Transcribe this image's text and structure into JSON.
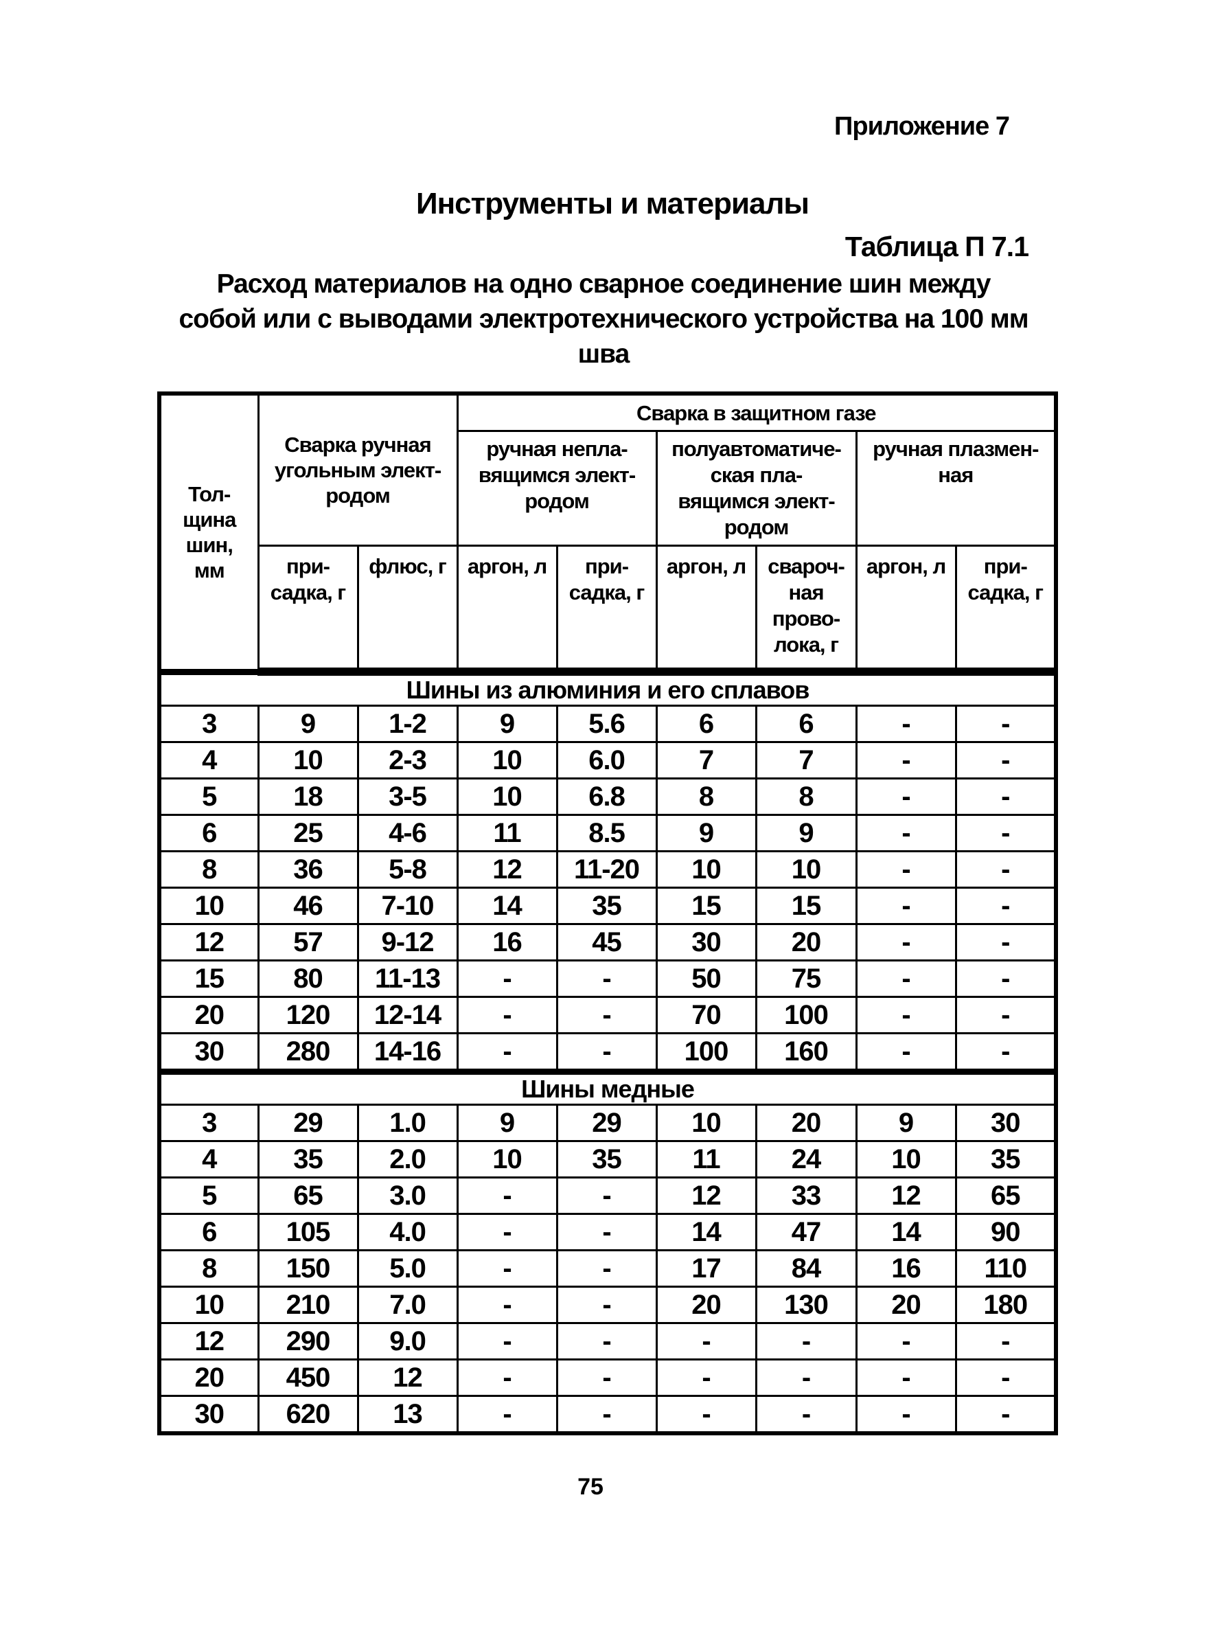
{
  "page": {
    "appendix": "Приложение 7",
    "title": "Инструменты и материалы",
    "table_label": "Таблица П 7.1",
    "subtitle": "Расход материалов на одно сварное соединение шин между\nсобой или с выводами электротехнического устройства на 100 мм\nшва",
    "page_number": "75"
  },
  "table": {
    "col_thickness": "Тол-\nщина\nшин,\nмм",
    "group_manual_carbon": "Сварка ручная\nугольным элект-\nродом",
    "group_shielded_gas": "Сварка в защитном газе",
    "sub_manual_nonconsumable": "ручная непла-\nвящимся элект-\nродом",
    "sub_semiauto_consumable": "полуавтоматиче-\nская пла-\nвящимся элект-\nродом",
    "sub_manual_plasma": "ручная плазмен-\nная",
    "units": [
      "при-\nсадка, г",
      "флюс, г",
      "аргон, л",
      "при-\nсадка, г",
      "аргон, л",
      "свароч-\nная\nпрово-\nлока, г",
      "аргон, л",
      "при-\nсадка, г"
    ],
    "sections": [
      {
        "title": "Шины из алюминия и его сплавов",
        "rows": [
          [
            "3",
            "9",
            "1-2",
            "9",
            "5.6",
            "6",
            "6",
            "-",
            "-"
          ],
          [
            "4",
            "10",
            "2-3",
            "10",
            "6.0",
            "7",
            "7",
            "-",
            "-"
          ],
          [
            "5",
            "18",
            "3-5",
            "10",
            "6.8",
            "8",
            "8",
            "-",
            "-"
          ],
          [
            "6",
            "25",
            "4-6",
            "11",
            "8.5",
            "9",
            "9",
            "-",
            "-"
          ],
          [
            "8",
            "36",
            "5-8",
            "12",
            "11-20",
            "10",
            "10",
            "-",
            "-"
          ],
          [
            "10",
            "46",
            "7-10",
            "14",
            "35",
            "15",
            "15",
            "-",
            "-"
          ],
          [
            "12",
            "57",
            "9-12",
            "16",
            "45",
            "30",
            "20",
            "-",
            "-"
          ],
          [
            "15",
            "80",
            "11-13",
            "-",
            "-",
            "50",
            "75",
            "-",
            "-"
          ],
          [
            "20",
            "120",
            "12-14",
            "-",
            "-",
            "70",
            "100",
            "-",
            "-"
          ],
          [
            "30",
            "280",
            "14-16",
            "-",
            "-",
            "100",
            "160",
            "-",
            "-"
          ]
        ]
      },
      {
        "title": "Шины медные",
        "rows": [
          [
            "3",
            "29",
            "1.0",
            "9",
            "29",
            "10",
            "20",
            "9",
            "30"
          ],
          [
            "4",
            "35",
            "2.0",
            "10",
            "35",
            "11",
            "24",
            "10",
            "35"
          ],
          [
            "5",
            "65",
            "3.0",
            "-",
            "-",
            "12",
            "33",
            "12",
            "65"
          ],
          [
            "6",
            "105",
            "4.0",
            "-",
            "-",
            "14",
            "47",
            "14",
            "90"
          ],
          [
            "8",
            "150",
            "5.0",
            "-",
            "-",
            "17",
            "84",
            "16",
            "110"
          ],
          [
            "10",
            "210",
            "7.0",
            "-",
            "-",
            "20",
            "130",
            "20",
            "180"
          ],
          [
            "12",
            "290",
            "9.0",
            "-",
            "-",
            "-",
            "-",
            "-",
            "-"
          ],
          [
            "20",
            "450",
            "12",
            "-",
            "-",
            "-",
            "-",
            "-",
            "-"
          ],
          [
            "30",
            "620",
            "13",
            "-",
            "-",
            "-",
            "-",
            "-",
            "-"
          ]
        ]
      }
    ]
  }
}
